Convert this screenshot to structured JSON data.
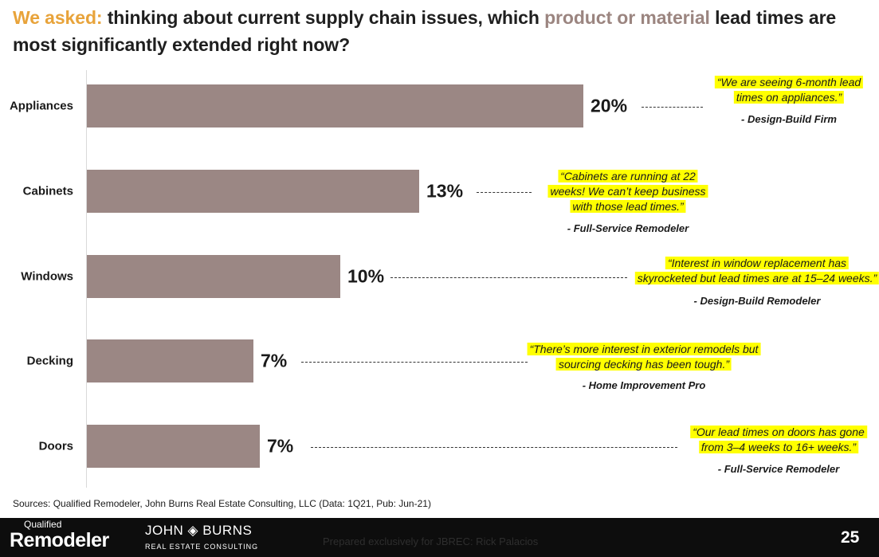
{
  "title": {
    "part1": "We asked:",
    "part2": " thinking about current supply chain issues, which ",
    "part3": "product or material",
    "part4": " lead times are most significantly extended right now?",
    "colors": {
      "accent": "#e8a33a",
      "highlight": "#9b8580",
      "text": "#1f1f1f"
    }
  },
  "chart_data": {
    "type": "bar",
    "orientation": "horizontal",
    "categories": [
      "Appliances",
      "Cabinets",
      "Windows",
      "Decking",
      "Doors"
    ],
    "values": [
      20,
      13,
      10,
      7,
      7
    ],
    "data_labels": [
      "20%",
      "13%",
      "10%",
      "7%",
      "7%"
    ],
    "unit": "%",
    "bar_color": "#9b8784",
    "grid": false,
    "xlim": [
      0,
      20
    ]
  },
  "quotes": [
    {
      "lines": [
        "“We are seeing 6-month lead",
        "times on appliances.”"
      ],
      "attribution": "- Design-Build Firm"
    },
    {
      "lines": [
        "“Cabinets are running at 22",
        "weeks! We can’t keep business",
        "with those lead times.”"
      ],
      "attribution": "- Full-Service Remodeler"
    },
    {
      "lines": [
        "“Interest in window replacement has",
        "skyrocketed but lead times are at 15–24 weeks.”"
      ],
      "attribution": "- Design-Build Remodeler"
    },
    {
      "lines": [
        "“There’s more interest in exterior remodels but",
        "sourcing decking has been tough.”"
      ],
      "attribution": "- Home Improvement Pro"
    },
    {
      "lines": [
        "“Our lead times on doors has gone",
        "from 3–4 weeks to 16+ weeks.”"
      ],
      "attribution": "- Full-Service Remodeler"
    }
  ],
  "source": "Sources: Qualified Remodeler, John Burns Real Estate Consulting, LLC (Data: 1Q21, Pub: Jun-21)",
  "footer": {
    "logo1_small": "Qualified",
    "logo1_big": "Remodeler",
    "logo2_top": "JOHN ◈ BURNS",
    "logo2_bottom": "REAL ESTATE CONSULTING",
    "prepared": "Prepared exclusively for JBREC: Rick Palacios",
    "page_number": "25"
  }
}
